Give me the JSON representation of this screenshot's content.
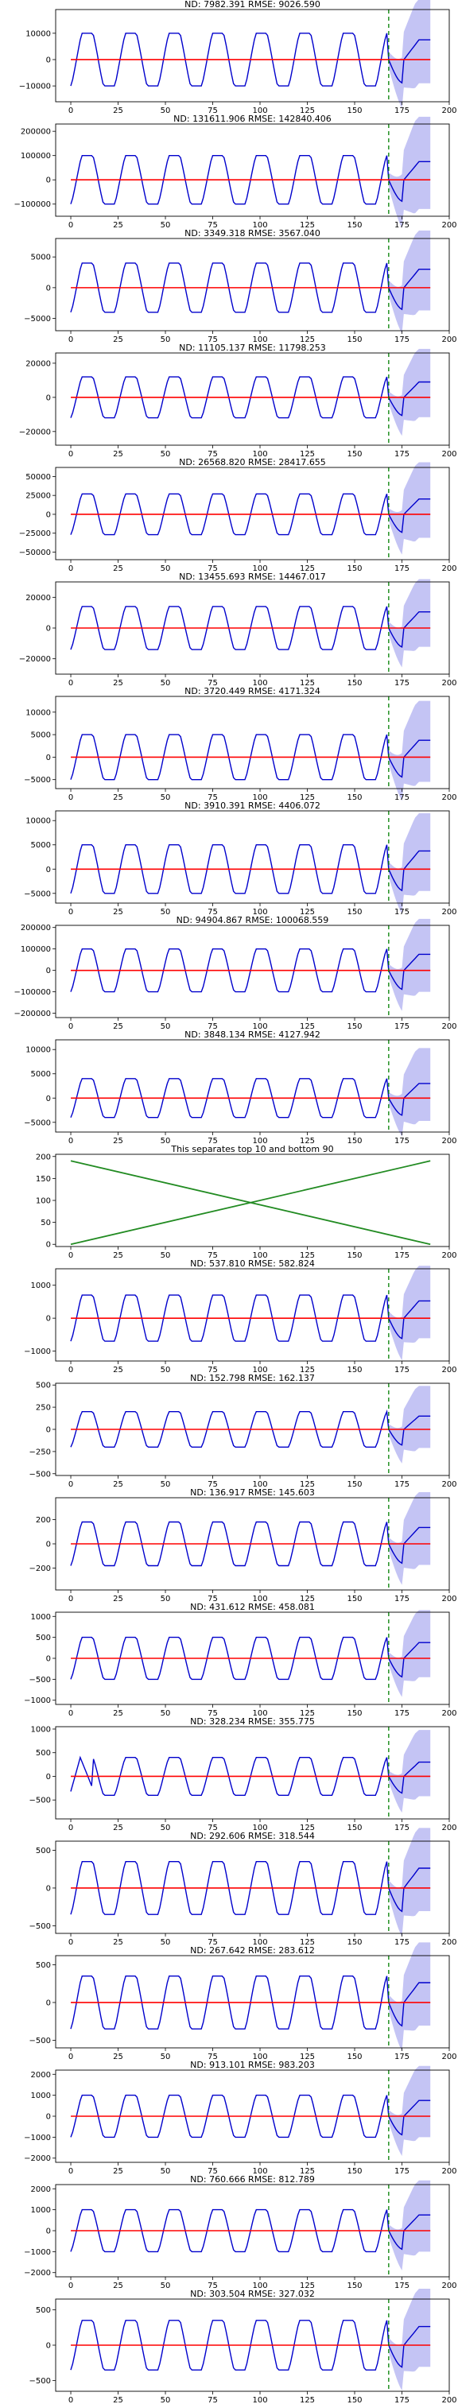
{
  "chart_data": [
    {
      "type": "line",
      "title": "ND:  7982.391 RMSE:  9026.590",
      "amp": 10000,
      "yticks": [
        -10000,
        0,
        10000
      ],
      "ylim": [
        -16000,
        19000
      ],
      "band": [
        10000,
        14000,
        16000
      ],
      "mode": "season"
    },
    {
      "type": "line",
      "title": "ND:  131611.906 RMSE:  142840.406",
      "amp": 100000,
      "yticks": [
        -100000,
        0,
        100000,
        200000
      ],
      "ylim": [
        -150000,
        230000
      ],
      "band": [
        100000,
        150000,
        190000
      ],
      "mode": "season"
    },
    {
      "type": "line",
      "title": "ND:  3349.318 RMSE:  3567.040",
      "amp": 4000,
      "yticks": [
        -5000,
        0,
        5000
      ],
      "ylim": [
        -7000,
        8000
      ],
      "band": [
        4000,
        5500,
        6500
      ],
      "mode": "season"
    },
    {
      "type": "line",
      "title": "ND:  11105.137 RMSE:  11798.253",
      "amp": 12000,
      "yticks": [
        -20000,
        0,
        20000
      ],
      "ylim": [
        -28000,
        26000
      ],
      "band": [
        12000,
        16000,
        20000
      ],
      "mode": "season"
    },
    {
      "type": "line",
      "title": "ND:  26568.820 RMSE:  28417.655",
      "amp": 27000,
      "yticks": [
        -50000,
        -25000,
        0,
        25000,
        50000
      ],
      "ylim": [
        -60000,
        62000
      ],
      "band": [
        27000,
        40000,
        50000
      ],
      "mode": "season"
    },
    {
      "type": "line",
      "title": "ND:  13455.693 RMSE:  14467.017",
      "amp": 14000,
      "yticks": [
        -20000,
        0,
        20000
      ],
      "ylim": [
        -30000,
        30000
      ],
      "band": [
        14000,
        18000,
        22000
      ],
      "mode": "season"
    },
    {
      "type": "line",
      "title": "ND:  3720.449 RMSE:  4171.324",
      "amp": 5000,
      "yticks": [
        -5000,
        0,
        5000,
        10000
      ],
      "ylim": [
        -7000,
        13500
      ],
      "band": [
        5000,
        7000,
        9000
      ],
      "mode": "season"
    },
    {
      "type": "line",
      "title": "ND:  3910.391 RMSE:  4406.072",
      "amp": 5000,
      "yticks": [
        -5000,
        0,
        5000,
        10000
      ],
      "ylim": [
        -7000,
        12000
      ],
      "band": [
        5000,
        7000,
        8000
      ],
      "mode": "season"
    },
    {
      "type": "line",
      "title": "ND:  94904.867 RMSE:  100068.559",
      "amp": 100000,
      "yticks": [
        -200000,
        -100000,
        0,
        100000,
        200000
      ],
      "ylim": [
        -220000,
        210000
      ],
      "band": [
        100000,
        140000,
        170000
      ],
      "mode": "season"
    },
    {
      "type": "line",
      "title": "ND:  3848.134 RMSE:  4127.942",
      "amp": 4000,
      "yticks": [
        -5000,
        0,
        5000,
        10000
      ],
      "ylim": [
        -7000,
        12000
      ],
      "band": [
        4000,
        6000,
        7500
      ],
      "mode": "season"
    },
    {
      "type": "line",
      "title": "This separates top 10 and bottom 90",
      "yticks": [
        0,
        50,
        100,
        150,
        200
      ],
      "ylim": [
        -5,
        205
      ],
      "mode": "cross"
    },
    {
      "type": "line",
      "title": "ND:  537.810 RMSE:  582.824",
      "amp": 700,
      "yticks": [
        -1000,
        0,
        1000
      ],
      "ylim": [
        -1300,
        1500
      ],
      "band": [
        700,
        900,
        1100
      ],
      "mode": "season"
    },
    {
      "type": "line",
      "title": "ND:  152.798 RMSE:  162.137",
      "amp": 200,
      "yticks": [
        -500,
        -250,
        0,
        250,
        500
      ],
      "ylim": [
        -520,
        520
      ],
      "band": [
        200,
        280,
        350
      ],
      "mode": "season"
    },
    {
      "type": "line",
      "title": "ND:  136.917 RMSE:  145.603",
      "amp": 180,
      "yticks": [
        -200,
        0,
        200
      ],
      "ylim": [
        -380,
        380
      ],
      "band": [
        180,
        240,
        300
      ],
      "mode": "season"
    },
    {
      "type": "line",
      "title": "ND:  431.612 RMSE:  458.081",
      "amp": 500,
      "yticks": [
        -1000,
        -500,
        0,
        500,
        1000
      ],
      "ylim": [
        -1100,
        1100
      ],
      "band": [
        500,
        650,
        800
      ],
      "mode": "season"
    },
    {
      "type": "line",
      "title": "ND:  328.234 RMSE:  355.775",
      "amp": 400,
      "yticks": [
        -500,
        0,
        500,
        1000
      ],
      "ylim": [
        -900,
        1050
      ],
      "band": [
        400,
        600,
        700
      ],
      "mode": "shift"
    },
    {
      "type": "line",
      "title": "ND:  292.606 RMSE:  318.544",
      "amp": 350,
      "yticks": [
        -500,
        0,
        500
      ],
      "ylim": [
        -600,
        620
      ],
      "band": [
        350,
        450,
        550
      ],
      "mode": "season"
    },
    {
      "type": "line",
      "title": "ND:  267.642 RMSE:  283.612",
      "amp": 350,
      "yticks": [
        -500,
        0,
        500
      ],
      "ylim": [
        -600,
        620
      ],
      "band": [
        350,
        450,
        550
      ],
      "mode": "season"
    },
    {
      "type": "line",
      "title": "ND:  913.101 RMSE:  983.203",
      "amp": 1000,
      "yticks": [
        -2000,
        -1000,
        0,
        1000,
        2000
      ],
      "ylim": [
        -2200,
        2200
      ],
      "band": [
        1000,
        1400,
        1700
      ],
      "mode": "season"
    },
    {
      "type": "line",
      "title": "ND:  760.666 RMSE:  812.789",
      "amp": 1000,
      "yticks": [
        -2000,
        -1000,
        0,
        1000,
        2000
      ],
      "ylim": [
        -2200,
        2200
      ],
      "band": [
        1000,
        1400,
        1700
      ],
      "mode": "season"
    },
    {
      "type": "line",
      "title": "ND:  303.504 RMSE:  327.032",
      "amp": 350,
      "yticks": [
        -500,
        0,
        500
      ],
      "ylim": [
        -650,
        650
      ],
      "band": [
        350,
        450,
        550
      ],
      "mode": "season"
    }
  ],
  "xticks": [
    0,
    25,
    50,
    75,
    100,
    125,
    150,
    175,
    200
  ],
  "xlim": [
    -8,
    200
  ],
  "cutoff": 168,
  "colors": {
    "observed": "#0000cc",
    "prediction": "#ff0000",
    "band": "#b0b0f0",
    "cutoff": "#008000",
    "cross": "#228b22"
  }
}
